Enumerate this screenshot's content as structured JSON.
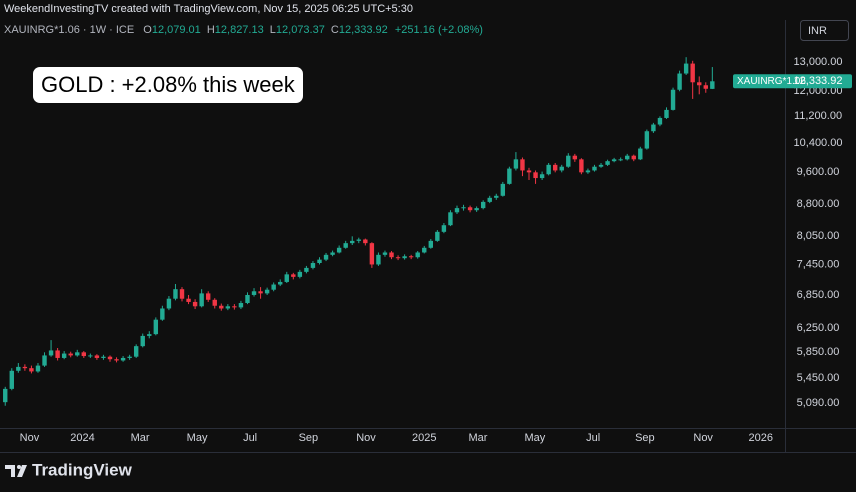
{
  "header": {
    "text": "WeekendInvestingTV created with TradingView.com, Nov 15, 2025 06:25 UTC+5:30"
  },
  "footer": {
    "brand": "TradingView"
  },
  "chart_data": {
    "type": "candlestick",
    "symbol": "XAUINRG*1.06 · 1W · ICE",
    "ohlc_header": [
      {
        "key": "O",
        "label": "12,079.01"
      },
      {
        "key": "H",
        "label": "12,827.13"
      },
      {
        "key": "L",
        "label": "12,073.37"
      },
      {
        "key": "C",
        "label": "12,333.92"
      }
    ],
    "change_label": "+251.16 (+2.08%)",
    "annotation": "GOLD : +2.08% this week",
    "currency": "INR",
    "last_price": {
      "name": "XAUINRG*1.06",
      "label": "12,333.92"
    },
    "up_color": "#22ab94",
    "down_color": "#f23645",
    "log_scale": true,
    "grid": false,
    "xlim": [
      -0.8,
      119.1
    ],
    "xticks": [
      {
        "value": 3.7,
        "label": "Nov"
      },
      {
        "value": 11.8,
        "label": "2024"
      },
      {
        "value": 20.6,
        "label": "Mar"
      },
      {
        "value": 29.3,
        "label": "May"
      },
      {
        "value": 37.4,
        "label": "Jul"
      },
      {
        "value": 46.3,
        "label": "Sep"
      },
      {
        "value": 55.1,
        "label": "Nov"
      },
      {
        "value": 64,
        "label": "2025"
      },
      {
        "value": 72.2,
        "label": "Mar"
      },
      {
        "value": 80.9,
        "label": "May"
      },
      {
        "value": 89.8,
        "label": "Jul"
      },
      {
        "value": 97.7,
        "label": "Sep"
      },
      {
        "value": 106.6,
        "label": "Nov"
      },
      {
        "value": 115.4,
        "label": "2026"
      }
    ],
    "ylim": [
      4750,
      14600
    ],
    "yticks": [
      {
        "value": 13000,
        "label": "13,000.00"
      },
      {
        "value": 12000,
        "label": "12,000.00"
      },
      {
        "value": 11200,
        "label": "11,200.00"
      },
      {
        "value": 10400,
        "label": "10,400.00"
      },
      {
        "value": 9600,
        "label": "9,600.00"
      },
      {
        "value": 8800,
        "label": "8,800.00"
      },
      {
        "value": 8050,
        "label": "8,050.00"
      },
      {
        "value": 7450,
        "label": "7,450.00"
      },
      {
        "value": 6850,
        "label": "6,850.00"
      },
      {
        "value": 6250,
        "label": "6,250.00"
      },
      {
        "value": 5850,
        "label": "5,850.00"
      },
      {
        "value": 5450,
        "label": "5,450.00"
      },
      {
        "value": 5090,
        "label": "5,090.00"
      }
    ],
    "open": [
      5100,
      5290,
      5560,
      5620,
      5600,
      5550,
      5640,
      5800,
      5880,
      5760,
      5830,
      5800,
      5850,
      5790,
      5800,
      5760,
      5780,
      5740,
      5720,
      5760,
      5780,
      5950,
      6120,
      6150,
      6400,
      6600,
      6780,
      6960,
      6780,
      6720,
      6640,
      6880,
      6760,
      6650,
      6600,
      6640,
      6620,
      6700,
      6850,
      6920,
      6880,
      6950,
      7050,
      7100,
      7250,
      7200,
      7300,
      7380,
      7480,
      7550,
      7650,
      7700,
      7800,
      7900,
      7950,
      7980,
      7900,
      7450,
      7650,
      7700,
      7600,
      7580,
      7620,
      7600,
      7700,
      7800,
      7950,
      8150,
      8300,
      8600,
      8700,
      8720,
      8650,
      8700,
      8850,
      8950,
      9000,
      9300,
      9700,
      9950,
      9650,
      9600,
      9450,
      9550,
      9800,
      9650,
      9750,
      10050,
      9950,
      9600,
      9650,
      9750,
      9800,
      9900,
      9950,
      9950,
      10050,
      9950,
      10250,
      10750,
      10950,
      11150,
      11400,
      12050,
      12600,
      12950,
      12300,
      12200,
      12079.01
    ],
    "high": [
      5320,
      5600,
      5680,
      5660,
      5640,
      5680,
      5850,
      6050,
      5920,
      5870,
      5860,
      5890,
      5870,
      5830,
      5820,
      5810,
      5800,
      5770,
      5790,
      5810,
      5980,
      6160,
      6200,
      6440,
      6650,
      6830,
      7060,
      7000,
      6850,
      6770,
      6960,
      6920,
      6790,
      6690,
      6680,
      6680,
      6740,
      6900,
      6980,
      7000,
      6990,
      7090,
      7150,
      7300,
      7280,
      7340,
      7420,
      7520,
      7600,
      7690,
      7740,
      7850,
      7950,
      8050,
      8020,
      8000,
      7920,
      7700,
      7740,
      7730,
      7640,
      7660,
      7650,
      7730,
      7840,
      7990,
      8190,
      8350,
      8650,
      8760,
      8780,
      8760,
      8740,
      8890,
      9000,
      9050,
      9350,
      9750,
      10150,
      10000,
      9720,
      9650,
      9620,
      9850,
      9850,
      9800,
      10120,
      10100,
      9980,
      9700,
      9800,
      9850,
      9940,
      9990,
      10000,
      10100,
      10080,
      10300,
      10800,
      11000,
      11200,
      11480,
      12120,
      12700,
      13180,
      13050,
      12500,
      12300,
      12827.13
    ],
    "low": [
      5050,
      5270,
      5530,
      5560,
      5520,
      5530,
      5620,
      5780,
      5720,
      5740,
      5770,
      5780,
      5760,
      5760,
      5730,
      5730,
      5700,
      5690,
      5700,
      5730,
      5760,
      5930,
      6080,
      6130,
      6380,
      6570,
      6750,
      6730,
      6680,
      6590,
      6620,
      6720,
      6600,
      6560,
      6570,
      6580,
      6590,
      6680,
      6820,
      6780,
      6850,
      6920,
      7020,
      7080,
      7150,
      7170,
      7270,
      7350,
      7450,
      7520,
      7620,
      7680,
      7780,
      7860,
      7900,
      7850,
      7380,
      7420,
      7610,
      7560,
      7540,
      7550,
      7560,
      7570,
      7680,
      7780,
      7930,
      8120,
      8280,
      8560,
      8640,
      8600,
      8610,
      8670,
      8820,
      8900,
      8980,
      9280,
      9650,
      9500,
      9400,
      9300,
      9400,
      9520,
      9600,
      9600,
      9720,
      9880,
      9550,
      9560,
      9620,
      9720,
      9770,
      9870,
      9900,
      9920,
      9900,
      9930,
      10220,
      10700,
      10900,
      11120,
      11380,
      12000,
      12550,
      11750,
      11900,
      11950,
      12073.37
    ],
    "close": [
      5290,
      5560,
      5620,
      5600,
      5550,
      5640,
      5800,
      5880,
      5760,
      5830,
      5800,
      5850,
      5790,
      5800,
      5760,
      5780,
      5740,
      5720,
      5760,
      5780,
      5950,
      6120,
      6150,
      6400,
      6600,
      6780,
      6960,
      6780,
      6720,
      6640,
      6880,
      6760,
      6650,
      6600,
      6640,
      6620,
      6700,
      6850,
      6920,
      6880,
      6950,
      7050,
      7100,
      7250,
      7200,
      7300,
      7380,
      7480,
      7550,
      7650,
      7700,
      7800,
      7900,
      7950,
      7980,
      7900,
      7450,
      7650,
      7700,
      7600,
      7580,
      7620,
      7600,
      7700,
      7800,
      7950,
      8150,
      8300,
      8600,
      8700,
      8720,
      8650,
      8700,
      8850,
      8950,
      9000,
      9300,
      9700,
      9950,
      9650,
      9600,
      9450,
      9550,
      9800,
      9650,
      9750,
      10050,
      9950,
      9600,
      9650,
      9750,
      9800,
      9900,
      9950,
      9950,
      10050,
      9950,
      10250,
      10750,
      10950,
      11150,
      11400,
      12050,
      12600,
      12950,
      12300,
      12200,
      12082.76,
      12333.92
    ]
  }
}
